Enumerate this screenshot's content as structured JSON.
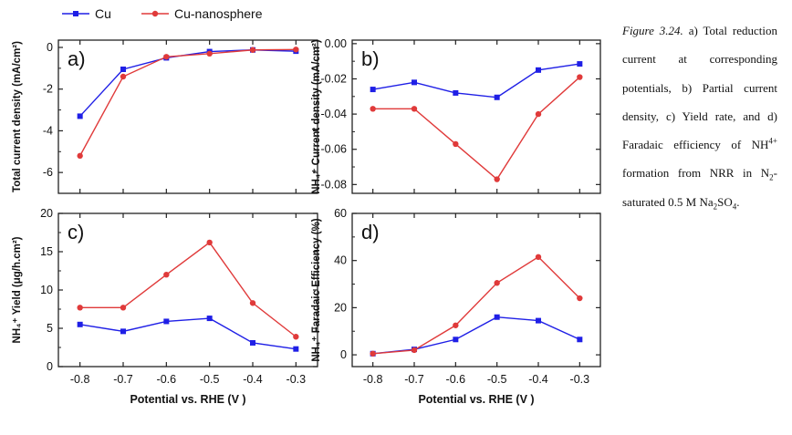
{
  "legend": {
    "items": [
      {
        "label": "Cu",
        "color": "#1f1fe6"
      },
      {
        "label": "Cu-nanosphere",
        "color": "#e03a3a"
      }
    ]
  },
  "caption": {
    "label": "Figure 3.24.",
    "text": "a) Total reduction current at corresponding potentials, b) Partial current density, c) Yield rate, and d) Faradaic efficiency of NH",
    "sup": "4+",
    "text2": " formation from NRR in N",
    "sub1": "2",
    "text3": "-saturated 0.5 M Na",
    "sub2": "2",
    "text4": "SO",
    "sub3": "4",
    "text5": "."
  },
  "chart_data": [
    {
      "id": "a",
      "type": "line",
      "panel_label": "a)",
      "xlabel": "",
      "ylabel": "Total current density (mA/cm²)",
      "x": [
        -0.8,
        -0.7,
        -0.6,
        -0.5,
        -0.4,
        -0.3
      ],
      "xticks": [
        "-0.8",
        "-0.7",
        "-0.6",
        "-0.5",
        "-0.4",
        "-0.3"
      ],
      "xlim": [
        -0.85,
        -0.25
      ],
      "ylim": [
        -7,
        0.35
      ],
      "yticks": [
        0,
        -2,
        -4,
        -6
      ],
      "ytick_labels": [
        "0",
        "-2",
        "-4",
        "-6"
      ],
      "show_xtick_labels": false,
      "series": [
        {
          "name": "Cu",
          "color": "#1f1fe6",
          "marker": "square",
          "values": [
            -3.3,
            -1.05,
            -0.5,
            -0.2,
            -0.12,
            -0.18
          ]
        },
        {
          "name": "Cu-nanosphere",
          "color": "#e03a3a",
          "marker": "circle",
          "values": [
            -5.2,
            -1.4,
            -0.45,
            -0.3,
            -0.12,
            -0.1
          ]
        }
      ]
    },
    {
      "id": "b",
      "type": "line",
      "panel_label": "b)",
      "xlabel": "",
      "ylabel": "NH₄⁺ Current density (mA/cm²)",
      "x": [
        -0.8,
        -0.7,
        -0.6,
        -0.5,
        -0.4,
        -0.3
      ],
      "xticks": [
        "-0.8",
        "-0.7",
        "-0.6",
        "-0.5",
        "-0.4",
        "-0.3"
      ],
      "xlim": [
        -0.85,
        -0.25
      ],
      "ylim": [
        -0.085,
        0.002
      ],
      "yticks": [
        0,
        -0.02,
        -0.04,
        -0.06,
        -0.08
      ],
      "ytick_labels": [
        "0.00",
        "-0.02",
        "-0.04",
        "-0.06",
        "-0.08"
      ],
      "show_xtick_labels": false,
      "series": [
        {
          "name": "Cu",
          "color": "#1f1fe6",
          "marker": "square",
          "values": [
            -0.026,
            -0.022,
            -0.028,
            -0.0305,
            -0.015,
            -0.0115
          ]
        },
        {
          "name": "Cu-nanosphere",
          "color": "#e03a3a",
          "marker": "circle",
          "values": [
            -0.037,
            -0.037,
            -0.057,
            -0.077,
            -0.04,
            -0.019
          ]
        }
      ]
    },
    {
      "id": "c",
      "type": "line",
      "panel_label": "c)",
      "xlabel": "Potential vs. RHE (V )",
      "ylabel": "NH₄⁺ Yield (μg/h.cm²)",
      "x": [
        -0.8,
        -0.7,
        -0.6,
        -0.5,
        -0.4,
        -0.3
      ],
      "xticks": [
        "-0.8",
        "-0.7",
        "-0.6",
        "-0.5",
        "-0.4",
        "-0.3"
      ],
      "xlim": [
        -0.85,
        -0.25
      ],
      "ylim": [
        0,
        20
      ],
      "yticks": [
        0,
        5,
        10,
        15,
        20
      ],
      "ytick_labels": [
        "0",
        "5",
        "10",
        "15",
        "20"
      ],
      "show_xtick_labels": true,
      "series": [
        {
          "name": "Cu",
          "color": "#1f1fe6",
          "marker": "square",
          "values": [
            5.5,
            4.6,
            5.9,
            6.3,
            3.1,
            2.3
          ]
        },
        {
          "name": "Cu-nanosphere",
          "color": "#e03a3a",
          "marker": "circle",
          "values": [
            7.7,
            7.7,
            12.0,
            16.2,
            8.3,
            3.9
          ]
        }
      ]
    },
    {
      "id": "d",
      "type": "line",
      "panel_label": "d)",
      "xlabel": "Potential vs. RHE (V )",
      "ylabel": "NH₄⁺ Faradaic Efficiency (%)",
      "x": [
        -0.8,
        -0.7,
        -0.6,
        -0.5,
        -0.4,
        -0.3
      ],
      "xticks": [
        "-0.8",
        "-0.7",
        "-0.6",
        "-0.5",
        "-0.4",
        "-0.3"
      ],
      "xlim": [
        -0.85,
        -0.25
      ],
      "ylim": [
        -5,
        60
      ],
      "yticks": [
        0,
        20,
        40,
        60
      ],
      "ytick_labels": [
        "0",
        "20",
        "40",
        "60"
      ],
      "show_xtick_labels": true,
      "series": [
        {
          "name": "Cu",
          "color": "#1f1fe6",
          "marker": "square",
          "values": [
            0.5,
            2.3,
            6.5,
            16,
            14.5,
            6.5
          ]
        },
        {
          "name": "Cu-nanosphere",
          "color": "#e03a3a",
          "marker": "circle",
          "values": [
            0.5,
            2.0,
            12.5,
            30.5,
            41.5,
            24
          ]
        }
      ]
    }
  ]
}
